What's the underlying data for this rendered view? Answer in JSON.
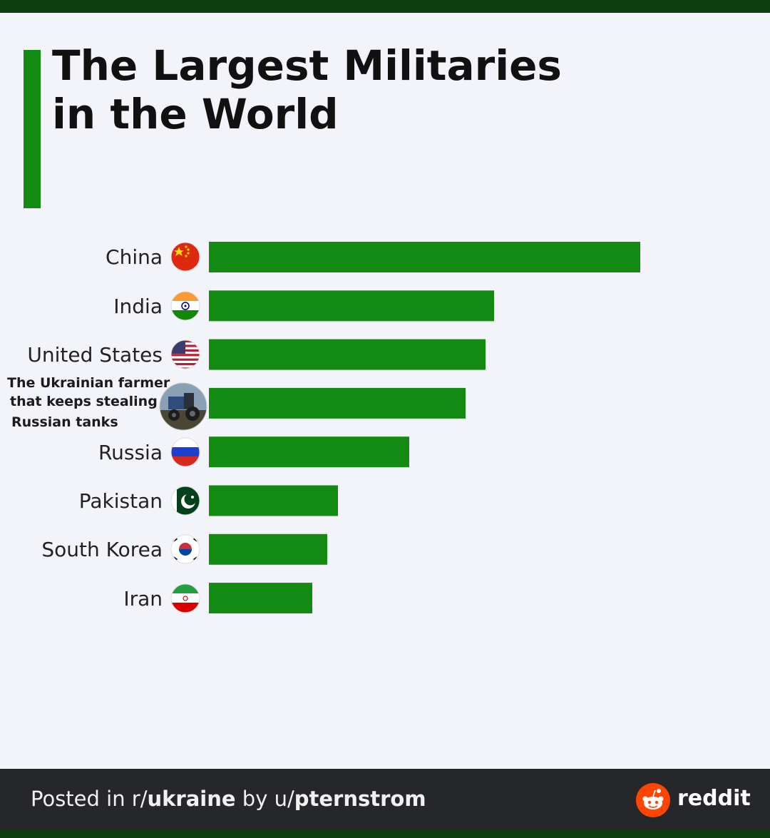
{
  "header": {
    "title_line1": "The Largest Militaries",
    "title_line2": "in the World"
  },
  "chart_data": {
    "type": "bar",
    "orientation": "horizontal",
    "title": "The Largest Militaries in the World",
    "xlabel": "",
    "ylabel": "",
    "grid": false,
    "bar_color": "#138b13",
    "categories": [
      "China",
      "India",
      "United States",
      "The Ukrainian farmer that keeps stealing Russian tanks",
      "Russia",
      "Pakistan",
      "South Korea",
      "Iran"
    ],
    "values": [
      605,
      400,
      388,
      360,
      281,
      181,
      166,
      145
    ],
    "icons": [
      "china-flag-icon",
      "india-flag-icon",
      "usa-flag-icon",
      "tractor-photo-icon",
      "russia-flag-icon",
      "pakistan-flag-icon",
      "south-korea-flag-icon",
      "iran-flag-icon"
    ]
  },
  "footer": {
    "posted_prefix": "Posted in r/",
    "subreddit": "ukraine",
    "by": " by u/",
    "user": "pternstrom",
    "brand": "reddit",
    "brand_color": "#ff4500"
  }
}
